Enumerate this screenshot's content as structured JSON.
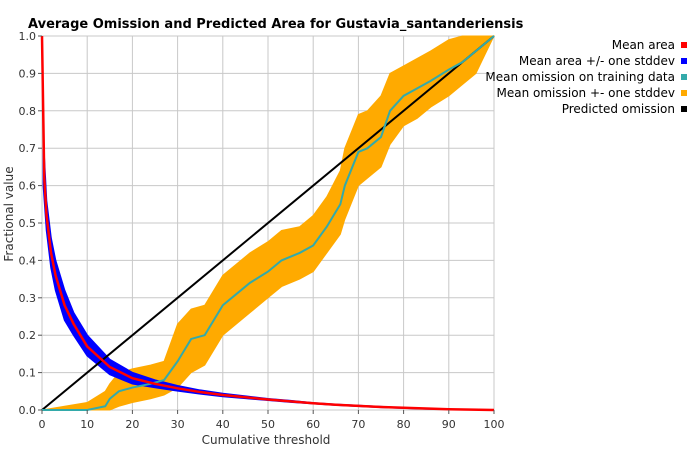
{
  "chart_data": {
    "type": "line",
    "title": "Average Omission and Predicted Area for Gustavia_santanderiensis",
    "xlabel": "Cumulative threshold",
    "ylabel": "Fractional value",
    "xlim": [
      0,
      100
    ],
    "ylim": [
      0,
      1
    ],
    "x_ticks": [
      0,
      10,
      20,
      30,
      40,
      50,
      60,
      70,
      80,
      90,
      100
    ],
    "y_ticks": [
      0.0,
      0.1,
      0.2,
      0.3,
      0.4,
      0.5,
      0.6,
      0.7,
      0.8,
      0.9,
      1.0
    ],
    "x_tick_labels": [
      "0",
      "10",
      "20",
      "30",
      "40",
      "50",
      "60",
      "70",
      "80",
      "90",
      "100"
    ],
    "y_tick_labels": [
      "0.0",
      "0.1",
      "0.2",
      "0.3",
      "0.4",
      "0.5",
      "0.6",
      "0.7",
      "0.8",
      "0.9",
      "1.0"
    ],
    "grid": true,
    "legend_position": "top-right",
    "legend": [
      {
        "label": "Mean area",
        "color": "#ff0000"
      },
      {
        "label": "Mean area +/- one stddev",
        "color": "#0000ff"
      },
      {
        "label": "Mean omission on training data",
        "color": "#33aaaa"
      },
      {
        "label": "Mean omission +- one stddev",
        "color": "#ffaa00"
      },
      {
        "label": "Predicted omission",
        "color": "#000000"
      }
    ],
    "series": {
      "mean_area": {
        "color": "#ff0000",
        "x": [
          0,
          0.5,
          1,
          2,
          3,
          5,
          7,
          10,
          15,
          20,
          25,
          30,
          35,
          40,
          45,
          50,
          55,
          60,
          65,
          70,
          75,
          80,
          85,
          90,
          95,
          100
        ],
        "y": [
          1.0,
          0.62,
          0.52,
          0.42,
          0.36,
          0.28,
          0.23,
          0.17,
          0.115,
          0.085,
          0.07,
          0.058,
          0.048,
          0.04,
          0.034,
          0.028,
          0.023,
          0.018,
          0.014,
          0.011,
          0.008,
          0.006,
          0.004,
          0.002,
          0.001,
          0.0
        ]
      },
      "mean_area_upper": {
        "color": "#0000ff",
        "x": [
          0.3,
          1,
          2,
          3,
          5,
          7,
          10,
          15,
          20,
          25,
          30,
          35,
          40,
          45,
          50,
          55,
          60,
          65,
          70,
          75,
          80,
          85,
          90,
          95,
          100
        ],
        "y": [
          0.72,
          0.56,
          0.46,
          0.4,
          0.32,
          0.26,
          0.2,
          0.135,
          0.1,
          0.08,
          0.065,
          0.053,
          0.044,
          0.037,
          0.03,
          0.025,
          0.019,
          0.015,
          0.012,
          0.009,
          0.006,
          0.004,
          0.002,
          0.001,
          0.0
        ]
      },
      "mean_area_lower": {
        "color": "#0000ff",
        "x": [
          0.3,
          1,
          2,
          3,
          5,
          7,
          10,
          15,
          20,
          25,
          30,
          35,
          40,
          45,
          50,
          55,
          60,
          65,
          70,
          75,
          80,
          85,
          90,
          95,
          100
        ],
        "y": [
          0.6,
          0.48,
          0.38,
          0.32,
          0.24,
          0.2,
          0.145,
          0.095,
          0.07,
          0.06,
          0.051,
          0.043,
          0.036,
          0.031,
          0.026,
          0.021,
          0.017,
          0.013,
          0.01,
          0.007,
          0.005,
          0.003,
          0.002,
          0.001,
          0.0
        ]
      },
      "mean_omission": {
        "color": "#33aaaa",
        "x": [
          0,
          10,
          14,
          15,
          17,
          20,
          24,
          27,
          30,
          33,
          36,
          40,
          43,
          46,
          50,
          53,
          57,
          60,
          63,
          66,
          67,
          70,
          72,
          75,
          77,
          80,
          83,
          86,
          90,
          93,
          96,
          98,
          100
        ],
        "y": [
          0.0,
          0.0,
          0.01,
          0.03,
          0.05,
          0.06,
          0.07,
          0.08,
          0.13,
          0.19,
          0.2,
          0.28,
          0.31,
          0.34,
          0.37,
          0.4,
          0.42,
          0.44,
          0.49,
          0.55,
          0.6,
          0.69,
          0.7,
          0.73,
          0.8,
          0.84,
          0.86,
          0.88,
          0.91,
          0.93,
          0.96,
          0.98,
          1.0
        ]
      },
      "mean_omission_upper": {
        "color": "#ffaa00",
        "x": [
          0,
          10,
          14,
          15,
          17,
          20,
          24,
          27,
          30,
          33,
          36,
          40,
          43,
          46,
          50,
          53,
          57,
          60,
          63,
          66,
          67,
          70,
          72,
          75,
          77,
          80,
          83,
          86,
          90,
          93,
          96,
          98,
          100
        ],
        "y": [
          0.0,
          0.02,
          0.05,
          0.07,
          0.1,
          0.11,
          0.12,
          0.13,
          0.23,
          0.27,
          0.28,
          0.36,
          0.39,
          0.42,
          0.45,
          0.48,
          0.49,
          0.52,
          0.57,
          0.64,
          0.7,
          0.79,
          0.8,
          0.84,
          0.9,
          0.92,
          0.94,
          0.96,
          0.99,
          1.0,
          1.0,
          1.0,
          1.0
        ]
      },
      "mean_omission_lower": {
        "color": "#ffaa00",
        "x": [
          0,
          10,
          14,
          15,
          17,
          20,
          24,
          27,
          30,
          33,
          36,
          40,
          43,
          46,
          50,
          53,
          57,
          60,
          63,
          66,
          67,
          70,
          72,
          75,
          77,
          80,
          83,
          86,
          90,
          93,
          96,
          98,
          100
        ],
        "y": [
          0.0,
          0.0,
          0.0,
          0.0,
          0.01,
          0.02,
          0.03,
          0.04,
          0.06,
          0.1,
          0.12,
          0.2,
          0.23,
          0.26,
          0.3,
          0.33,
          0.35,
          0.37,
          0.42,
          0.47,
          0.51,
          0.6,
          0.62,
          0.65,
          0.71,
          0.76,
          0.78,
          0.81,
          0.84,
          0.87,
          0.9,
          0.95,
          1.0
        ]
      },
      "predicted_omission": {
        "color": "#000000",
        "x": [
          0,
          100
        ],
        "y": [
          0,
          1
        ]
      }
    }
  }
}
